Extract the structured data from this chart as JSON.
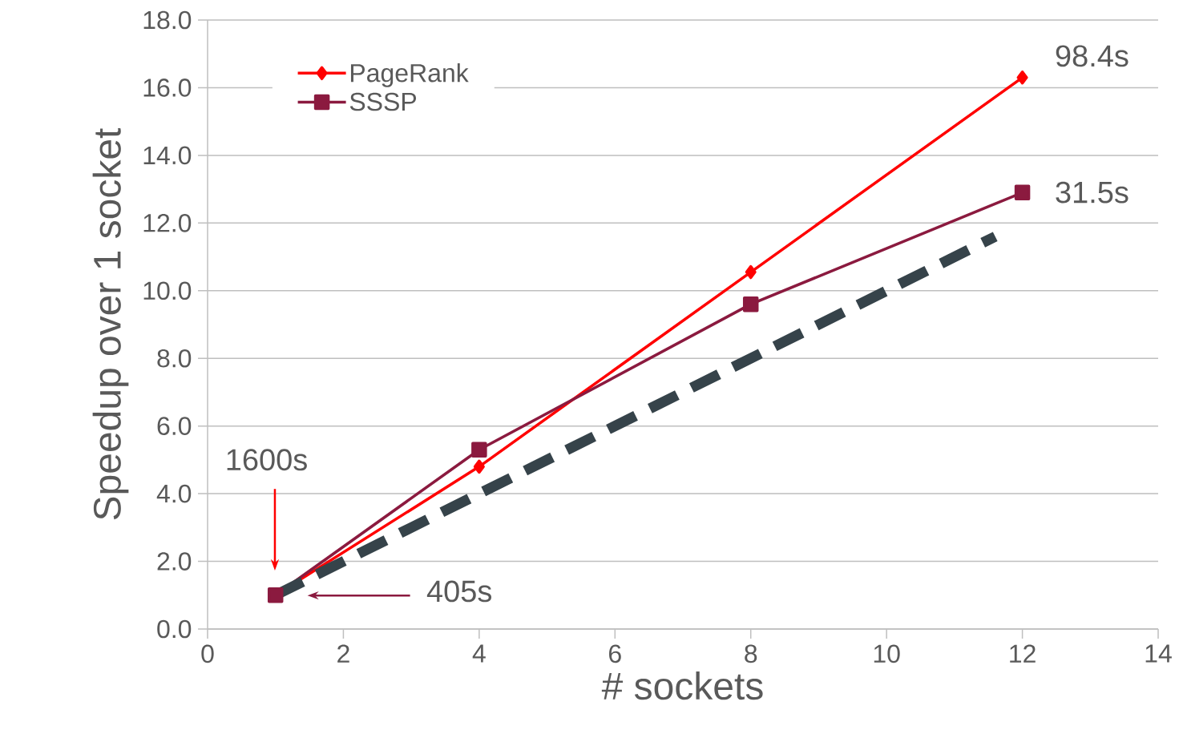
{
  "chart_data": {
    "type": "line",
    "xlabel": "# sockets",
    "ylabel": "Speedup over 1 socket",
    "xlim": [
      0,
      14
    ],
    "xticks": [
      0,
      2,
      4,
      6,
      8,
      10,
      12,
      14
    ],
    "ylim": [
      0,
      18
    ],
    "yticks": [
      {
        "value": 0,
        "label": "0.0"
      },
      {
        "value": 2,
        "label": "2.0"
      },
      {
        "value": 4,
        "label": "4.0"
      },
      {
        "value": 6,
        "label": "6.0"
      },
      {
        "value": 8,
        "label": "8.0"
      },
      {
        "value": 10,
        "label": "10.0"
      },
      {
        "value": 12,
        "label": "12.0"
      },
      {
        "value": 14,
        "label": "14.0"
      },
      {
        "value": 16,
        "label": "16.0"
      },
      {
        "value": 18,
        "label": "18.0"
      }
    ],
    "grid": "y",
    "legend": "top left",
    "series": [
      {
        "name": "PageRank",
        "color": "#ff0000",
        "marker": "diamond",
        "x": [
          1,
          4,
          8,
          12
        ],
        "values": [
          1,
          4.8,
          10.55,
          16.3
        ]
      },
      {
        "name": "SSSP",
        "color": "#8b1a3f",
        "marker": "square",
        "x": [
          1,
          4,
          8,
          12
        ],
        "values": [
          1,
          5.3,
          9.6,
          12.9
        ]
      },
      {
        "color": "#36434a",
        "marker": "none",
        "line_style": "dashed",
        "x": [
          1,
          11.6
        ],
        "values": [
          1,
          11.6
        ]
      }
    ],
    "annotations": [
      "98.4s",
      "31.5s",
      "1600s",
      "405s"
    ]
  }
}
